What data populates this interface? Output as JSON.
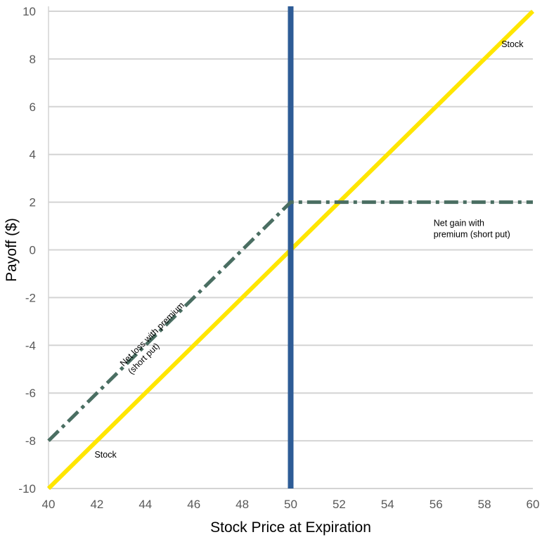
{
  "chart_data": {
    "type": "line",
    "title": "",
    "xlabel": "Stock Price at Expiration",
    "ylabel": "Payoff ($)",
    "xlim": [
      40,
      60
    ],
    "ylim": [
      -10,
      10
    ],
    "x_ticks": [
      40,
      42,
      44,
      46,
      48,
      50,
      52,
      54,
      56,
      58,
      60
    ],
    "y_ticks": [
      -10,
      -8,
      -6,
      -4,
      -2,
      0,
      2,
      4,
      6,
      8,
      10
    ],
    "grid": "horizontal",
    "legend": "none",
    "series": [
      {
        "name": "Stock",
        "style": "solid",
        "color": "#FFE600",
        "x": [
          40,
          60
        ],
        "y": [
          -10,
          10
        ]
      },
      {
        "name": "",
        "style": "dash-dot",
        "color": "#4A6E62",
        "x": [
          40,
          50,
          60
        ],
        "y": [
          -8,
          2,
          2
        ]
      }
    ],
    "vertical_line": {
      "x": 50,
      "color": "#2E5C96"
    },
    "annotations": [
      {
        "text": "Stock",
        "x": 58.7,
        "y": 8.5,
        "rotation": 0
      },
      {
        "text": "Stock",
        "x": 41.9,
        "y": -8.7,
        "rotation": 0
      },
      {
        "text": [
          "Net gain with",
          "premium (short put)"
        ],
        "x": 55.9,
        "y": 1.0,
        "rotation": 0
      },
      {
        "text": [
          "Net loss with premium",
          "(short put)"
        ],
        "x": 43.1,
        "y": -4.9,
        "rotation": -45
      }
    ]
  }
}
